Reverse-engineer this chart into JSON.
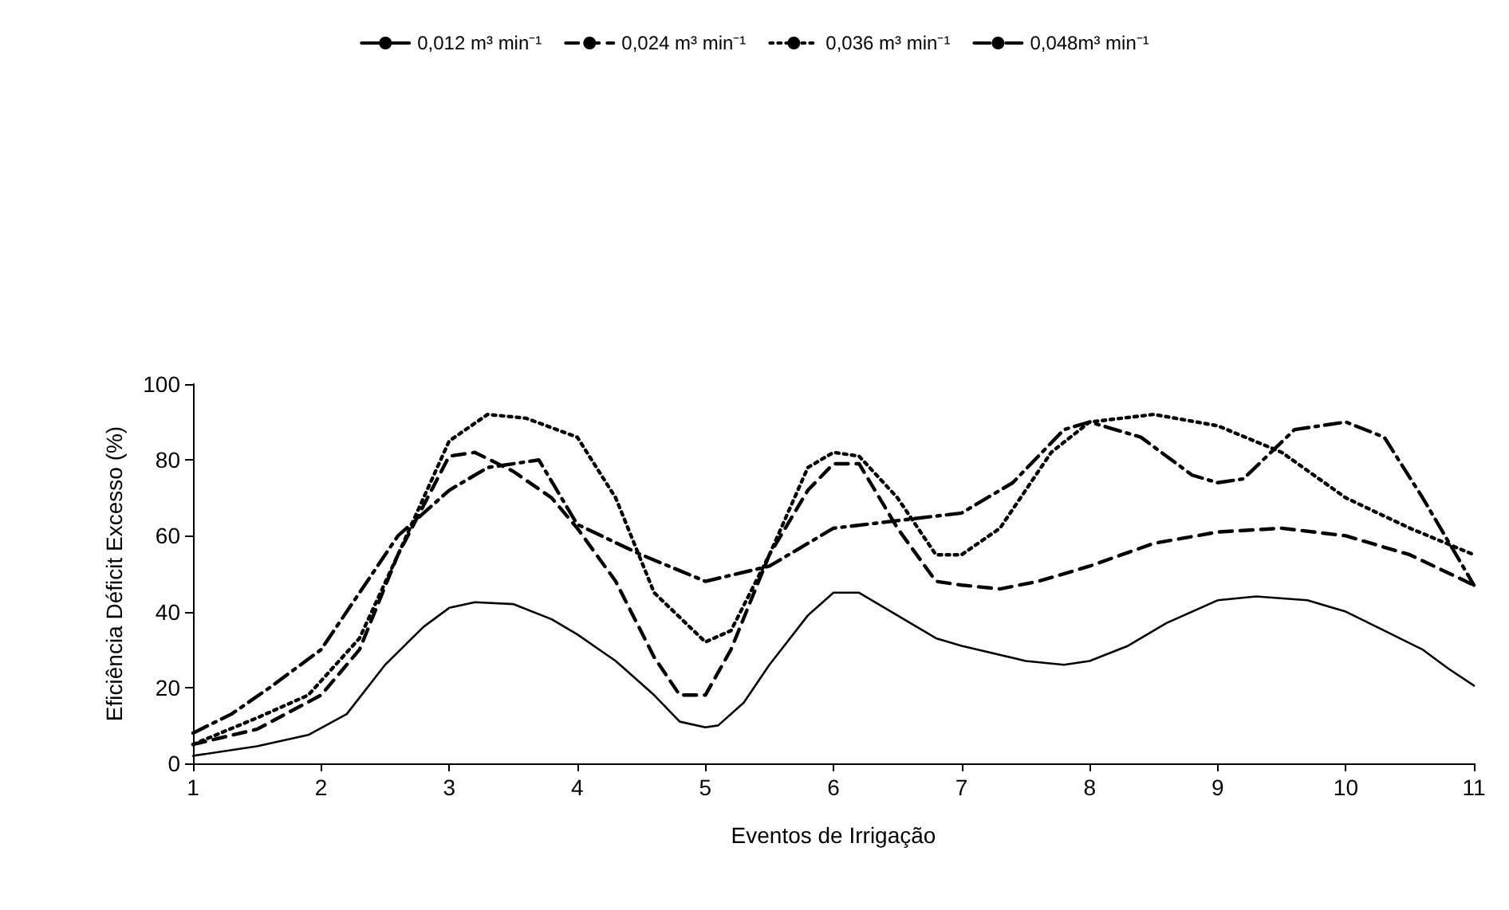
{
  "chart_data": {
    "type": "line",
    "xlabel": "Eventos de Irrigação",
    "ylabel": "Eficiência Déficit Excesso (%)",
    "xlim": [
      1,
      11
    ],
    "xticks": [
      1,
      2,
      3,
      4,
      5,
      6,
      7,
      8,
      9,
      10,
      11
    ],
    "ylim": [
      0,
      100
    ],
    "yticks": [
      0,
      20,
      40,
      60,
      80,
      100
    ],
    "grid": false,
    "legend": "top",
    "marker": "none",
    "series": [
      {
        "name": "0,012 m³ min⁻¹",
        "color": "#000000",
        "line_style": "solid",
        "x": [
          1,
          1.5,
          1.9,
          2.2,
          2.5,
          2.8,
          3,
          3.2,
          3.5,
          3.8,
          4,
          4.3,
          4.6,
          4.8,
          5,
          5.1,
          5.3,
          5.5,
          5.8,
          6,
          6.2,
          6.5,
          6.8,
          7,
          7.5,
          7.8,
          8,
          8.3,
          8.6,
          9,
          9.3,
          9.7,
          10,
          10.3,
          10.6,
          10.8,
          11
        ],
        "values": [
          2,
          4.5,
          7.5,
          13,
          26,
          36,
          41,
          42.5,
          42,
          38,
          34,
          27,
          18,
          11,
          9.5,
          10,
          16,
          26,
          39,
          45,
          45,
          39,
          33,
          31,
          27,
          26,
          27,
          31,
          37,
          43,
          44,
          43,
          40,
          35,
          30,
          25,
          20.5
        ]
      },
      {
        "name": "0,024 m³ min⁻¹",
        "color": "#000000",
        "line_style": "dashed",
        "x": [
          1,
          1.5,
          2,
          2.3,
          2.6,
          3,
          3.2,
          3.5,
          3.8,
          4,
          4.3,
          4.6,
          4.8,
          5,
          5.2,
          5.5,
          5.8,
          6,
          6.2,
          6.5,
          6.8,
          7,
          7.3,
          7.6,
          8,
          8.5,
          9,
          9.5,
          10,
          10.5,
          11
        ],
        "values": [
          5,
          9,
          18,
          30,
          55,
          81,
          82,
          77,
          70,
          62,
          48,
          28,
          18,
          18,
          30,
          55,
          72,
          79,
          79,
          62,
          48,
          47,
          46,
          48,
          52,
          58,
          61,
          62,
          60,
          55,
          47
        ]
      },
      {
        "name": "0,036 m³ min⁻¹",
        "color": "#000000",
        "line_style": "dotted",
        "x": [
          1,
          1.5,
          1.9,
          2.3,
          2.6,
          3,
          3.3,
          3.6,
          4,
          4.3,
          4.6,
          5,
          5.2,
          5.5,
          5.8,
          6,
          6.2,
          6.5,
          6.8,
          7,
          7.3,
          7.7,
          8,
          8.5,
          9,
          9.5,
          10,
          10.5,
          11
        ],
        "values": [
          5,
          12,
          18,
          33,
          55,
          85,
          92,
          91,
          86,
          70,
          45,
          32,
          35,
          55,
          78,
          82,
          81,
          70,
          55,
          55,
          62,
          82,
          90,
          92,
          89,
          82,
          70,
          62,
          55
        ]
      },
      {
        "name": "0,048m³ min⁻¹",
        "color": "#000000",
        "line_style": "dashed",
        "x": [
          1,
          1.3,
          1.6,
          2,
          2.3,
          2.6,
          3,
          3.3,
          3.7,
          4,
          4.5,
          5,
          5.5,
          6,
          6.5,
          7,
          7.4,
          7.8,
          8,
          8.4,
          8.8,
          9,
          9.2,
          9.6,
          10,
          10.3,
          10.6,
          11
        ],
        "values": [
          8,
          13,
          20,
          30,
          45,
          60,
          72,
          78,
          80,
          63,
          55,
          48,
          52,
          62,
          64,
          66,
          74,
          88,
          90,
          86,
          76,
          74,
          75,
          88,
          90,
          86,
          70,
          47
        ]
      }
    ]
  }
}
